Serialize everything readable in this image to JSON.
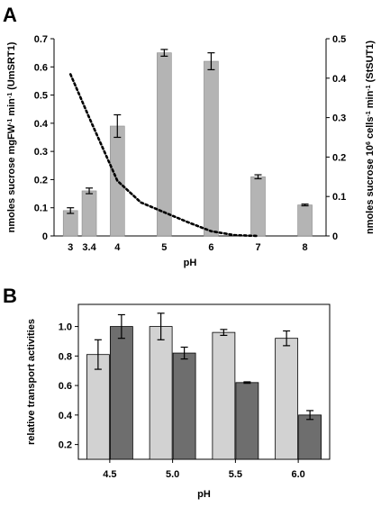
{
  "figure": {
    "panel_a_letter": "A",
    "panel_b_letter": "B"
  },
  "chart_data": [
    {
      "panel": "A",
      "type": "bar",
      "bar_color": "#b4b4b4",
      "x": [
        3,
        3.4,
        4,
        5,
        6,
        7,
        8
      ],
      "x_tick_labels": [
        "3",
        "3.4",
        "4",
        "5",
        "6",
        "7",
        "8"
      ],
      "values": [
        0.09,
        0.16,
        0.39,
        0.65,
        0.62,
        0.21,
        0.11
      ],
      "errors": [
        0.01,
        0.01,
        0.04,
        0.012,
        0.03,
        0.007,
        0.003
      ],
      "xlabel": "pH",
      "ylabel": {
        "text": "nmoles sucrose mgFW",
        "sup": "-1",
        "text2": " min",
        "sup2": "-1",
        "text3": " (UmSRT1)"
      },
      "ylim": [
        0,
        0.7
      ],
      "y_ticks": [
        "0",
        "0.1",
        "0.2",
        "0.3",
        "0.4",
        "0.5",
        "0.6",
        "0.7"
      ],
      "secondary": {
        "type": "line",
        "style": "dotted",
        "color": "#000000",
        "x": [
          3,
          3.4,
          4,
          4.5,
          5,
          5.5,
          6,
          6.5,
          7
        ],
        "values": [
          0.41,
          0.3,
          0.14,
          0.085,
          0.06,
          0.035,
          0.012,
          0.002,
          0
        ],
        "ylabel": {
          "text": "nmoles sucrose 10",
          "sup": "6",
          "text2": " cells",
          "sup2": "-1",
          "text3": " min",
          "sup3": "-1",
          "text4": " (StSUT1)"
        },
        "ylim": [
          0,
          0.5
        ],
        "y_ticks": [
          "0",
          "0.1",
          "0.2",
          "0.3",
          "0.4",
          "0.5"
        ]
      }
    },
    {
      "panel": "B",
      "type": "bar",
      "categories": [
        "4.5",
        "5.0",
        "5.5",
        "6.0"
      ],
      "series": [
        {
          "color": "#d2d2d2",
          "values": [
            0.81,
            1.0,
            0.96,
            0.92
          ],
          "errors": [
            0.1,
            0.09,
            0.02,
            0.05
          ]
        },
        {
          "color": "#6e6e6e",
          "values": [
            1.0,
            0.82,
            0.62,
            0.4
          ],
          "errors": [
            0.08,
            0.04,
            0.005,
            0.03
          ]
        }
      ],
      "xlabel": "pH",
      "ylabel": "relative transport activities",
      "ylim": [
        0,
        1.2
      ],
      "y_ticks": [
        "0.2",
        "0.4",
        "0.6",
        "0.8",
        "1.0"
      ],
      "y_tick_values": [
        0.2,
        0.4,
        0.6,
        0.8,
        1.0
      ],
      "y_axis_min_shown": 0.1,
      "y_axis_max_shown": 1.15
    }
  ]
}
